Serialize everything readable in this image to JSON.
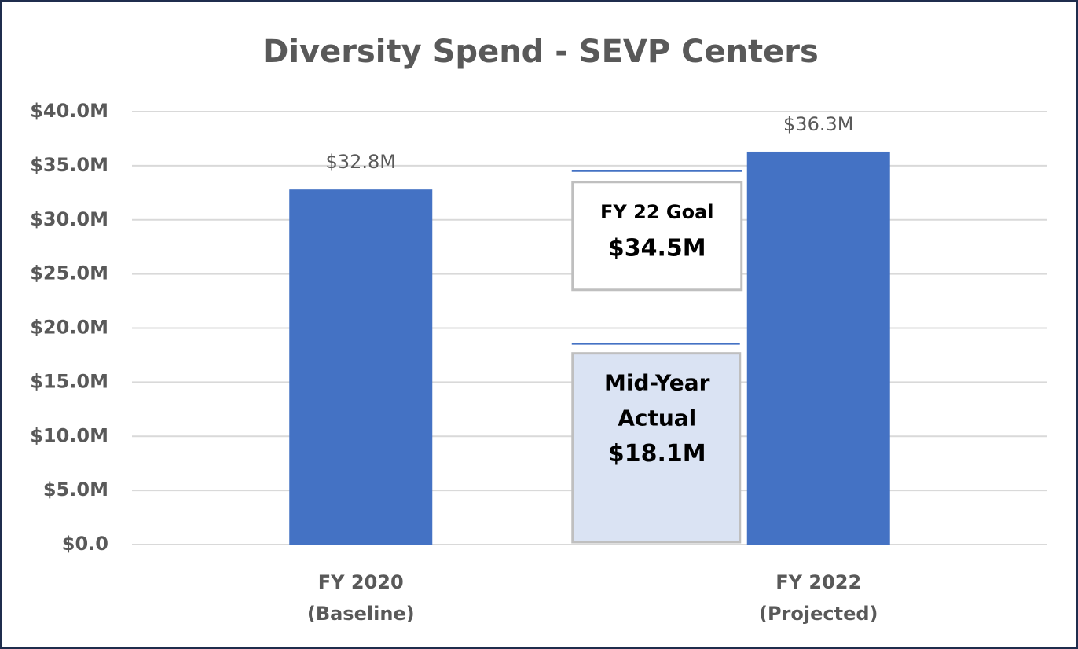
{
  "chart_data": {
    "type": "bar",
    "title": "Diversity Spend - SEVP Centers",
    "categories": [
      [
        "FY 2020",
        "(Baseline)"
      ],
      [
        "FY 2022",
        "(Projected)"
      ]
    ],
    "values": [
      32.8,
      36.3
    ],
    "value_labels": [
      "$32.8M",
      "$36.3M"
    ],
    "color": "#4472c4",
    "ylim": [
      0,
      40
    ],
    "yticks": [
      {
        "value": 0,
        "label": "$0.0"
      },
      {
        "value": 5,
        "label": "$5.0M"
      },
      {
        "value": 10,
        "label": "$10.0M"
      },
      {
        "value": 15,
        "label": "$15.0M"
      },
      {
        "value": 20,
        "label": "$20.0M"
      },
      {
        "value": 25,
        "label": "$25.0M"
      },
      {
        "value": 30,
        "label": "$30.0M"
      },
      {
        "value": 35,
        "label": "$35.0M"
      },
      {
        "value": 40,
        "label": "$40.0M"
      }
    ],
    "grid": true,
    "annotations": {
      "goal": {
        "text": [
          "FY 22 Goal"
        ],
        "value": 34.5,
        "value_label": "$34.5M",
        "color": "#4472c4"
      },
      "mid_year": {
        "text": [
          "Mid-Year",
          "Actual"
        ],
        "value": 18.1,
        "value_label": "$18.1M",
        "color": "#dae3f3"
      }
    }
  }
}
